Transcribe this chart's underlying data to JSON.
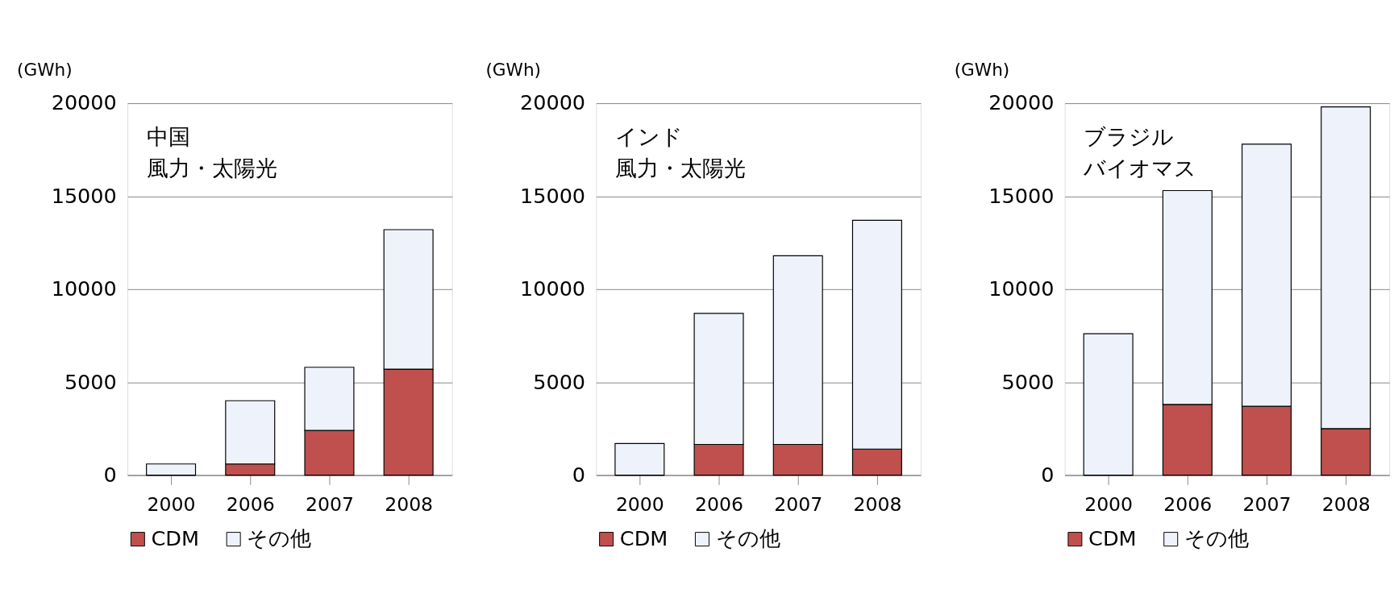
{
  "chart_data": [
    {
      "type": "bar",
      "title": "中国",
      "subtitle": "風力・太陽光",
      "ylabel": "(GWh)",
      "categories": [
        "2000",
        "2006",
        "2007",
        "2008"
      ],
      "stacked": true,
      "ylim": [
        0,
        20000
      ],
      "yticks": [
        0,
        5000,
        10000,
        15000,
        20000
      ],
      "grid": "y",
      "legend": "bottom",
      "series": [
        {
          "name": "CDM",
          "color": "#c0504d",
          "values": [
            0,
            600,
            2400,
            5700
          ]
        },
        {
          "name": "その他",
          "color": "#eef3fb",
          "values": [
            600,
            3400,
            3400,
            7500
          ]
        }
      ]
    },
    {
      "type": "bar",
      "title": "インド",
      "subtitle": "風力・太陽光",
      "ylabel": "(GWh)",
      "categories": [
        "2000",
        "2006",
        "2007",
        "2008"
      ],
      "stacked": true,
      "ylim": [
        0,
        20000
      ],
      "yticks": [
        0,
        5000,
        10000,
        15000,
        20000
      ],
      "grid": "y",
      "legend": "bottom",
      "series": [
        {
          "name": "CDM",
          "color": "#c0504d",
          "values": [
            0,
            1650,
            1650,
            1400
          ]
        },
        {
          "name": "その他",
          "color": "#eef3fb",
          "values": [
            1700,
            7050,
            10150,
            12300
          ]
        }
      ]
    },
    {
      "type": "bar",
      "title": "ブラジル",
      "subtitle": "バイオマス",
      "ylabel": "(GWh)",
      "categories": [
        "2000",
        "2006",
        "2007",
        "2008"
      ],
      "stacked": true,
      "ylim": [
        0,
        20000
      ],
      "yticks": [
        0,
        5000,
        10000,
        15000,
        20000
      ],
      "grid": "y",
      "legend": "bottom",
      "series": [
        {
          "name": "CDM",
          "color": "#c0504d",
          "values": [
            0,
            3800,
            3700,
            2500
          ]
        },
        {
          "name": "その他",
          "color": "#eef3fb",
          "values": [
            7600,
            11500,
            14100,
            17300
          ]
        }
      ]
    }
  ]
}
